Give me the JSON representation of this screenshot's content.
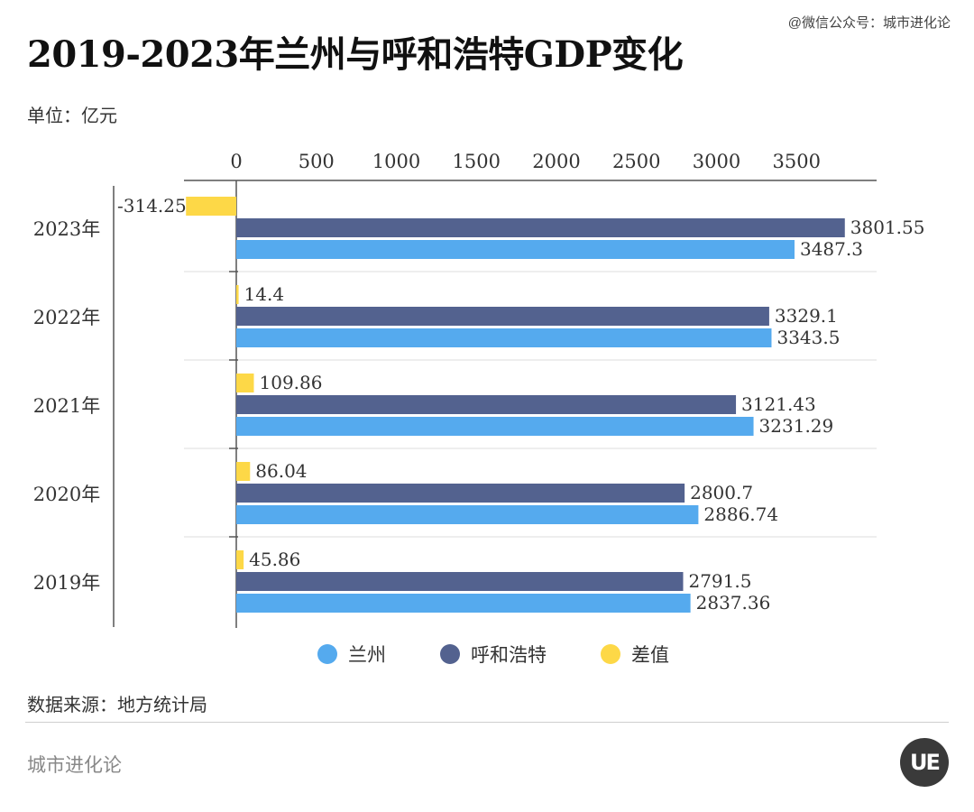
{
  "header": {
    "title": "2019-2023年兰州与呼和浩特GDP变化",
    "watermark": "@微信公众号：城市进化论",
    "unit": "单位：亿元"
  },
  "footer": {
    "source": "数据来源：地方统计局",
    "brand": "城市进化论",
    "logo": "UE"
  },
  "colors": {
    "lanzhou": "#55aaee",
    "huhehaote": "#53628f",
    "diff": "#fdd847",
    "grid": "#dddddd",
    "axis": "#555555"
  },
  "chart_data": {
    "type": "bar",
    "orientation": "horizontal",
    "xlim": [
      -350,
      3900
    ],
    "xticks": [
      0,
      500,
      1000,
      1500,
      2000,
      2500,
      3000,
      3500
    ],
    "categories": [
      "2023年",
      "2022年",
      "2021年",
      "2020年",
      "2019年"
    ],
    "series": [
      {
        "name": "差值",
        "values": [
          -314.25,
          14.4,
          109.86,
          86.04,
          45.86
        ],
        "labels": [
          "-314.25",
          "14.4",
          "109.86",
          "86.04",
          "45.86"
        ]
      },
      {
        "name": "呼和浩特",
        "values": [
          3801.55,
          3329.1,
          3121.43,
          2800.7,
          2791.5
        ],
        "labels": [
          "3801.55",
          "3329.1",
          "3121.43",
          "2800.7",
          "2791.5"
        ]
      },
      {
        "name": "兰州",
        "values": [
          3487.3,
          3343.5,
          3231.29,
          2886.74,
          2837.36
        ],
        "labels": [
          "3487.3",
          "3343.5",
          "3231.29",
          "2886.74",
          "2837.36"
        ]
      }
    ],
    "legend": [
      {
        "name": "兰州",
        "color": "#55aaee"
      },
      {
        "name": "呼和浩特",
        "color": "#53628f"
      },
      {
        "name": "差值",
        "color": "#fdd847"
      }
    ],
    "legend_position": "bottom",
    "grid": true
  }
}
